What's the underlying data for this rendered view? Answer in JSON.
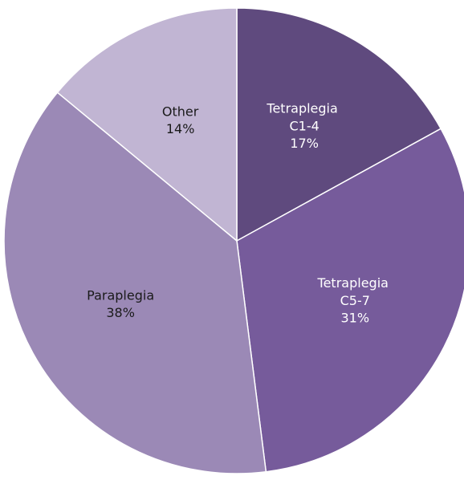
{
  "chart_data": {
    "type": "pie",
    "categories": [
      "Tetraplegia C1-4",
      "Tetraplegia C5-7",
      "Paraplegia",
      "Other"
    ],
    "values": [
      17,
      31,
      38,
      14
    ],
    "value_labels": [
      "17%",
      "31%",
      "38%",
      "14%"
    ],
    "colors": [
      "#5f4a7e",
      "#765b9b",
      "#9b89b6",
      "#c1b5d3"
    ]
  }
}
